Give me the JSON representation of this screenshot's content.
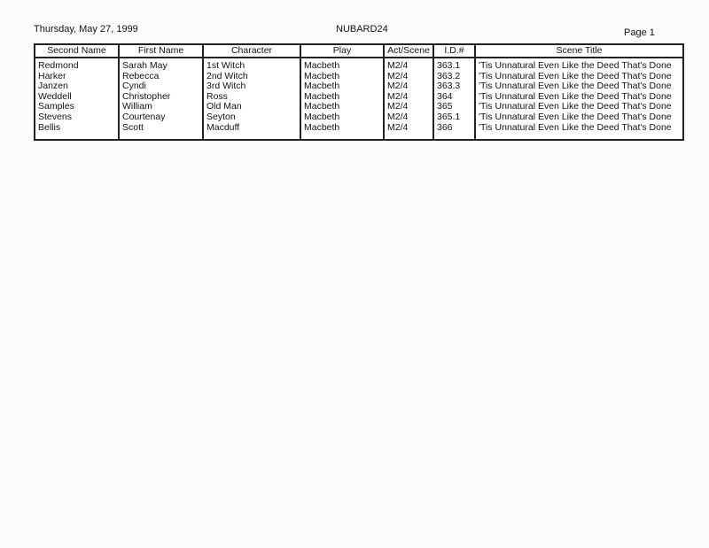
{
  "header": {
    "date": "Thursday, May 27, 1999",
    "report": "NUBARD24",
    "page": "Page 1"
  },
  "table": {
    "columns": [
      "Second Name",
      "First Name",
      "Character",
      "Play",
      "Act/Scene",
      "I.D.#",
      "Scene Title"
    ],
    "rows": [
      [
        "Redmond",
        "Sarah May",
        "1st Witch",
        "Macbeth",
        "M2/4",
        "363.1",
        "'Tis Unnatural Even Like the Deed That's Done"
      ],
      [
        "Harker",
        "Rebecca",
        "2nd Witch",
        "Macbeth",
        "M2/4",
        "363.2",
        "'Tis Unnatural Even Like the Deed That's Done"
      ],
      [
        "Janzen",
        "Cyndi",
        "3rd Witch",
        "Macbeth",
        "M2/4",
        "363.3",
        "'Tis Unnatural Even Like the Deed That's Done"
      ],
      [
        "Weddell",
        "Christopher",
        "Ross",
        "Macbeth",
        "M2/4",
        "364",
        "'Tis Unnatural Even Like the Deed That's Done"
      ],
      [
        "Samples",
        "William",
        "Old Man",
        "Macbeth",
        "M2/4",
        "365",
        "'Tis Unnatural Even Like the Deed That's Done"
      ],
      [
        "Stevens",
        "Courtenay",
        "Seyton",
        "Macbeth",
        "M2/4",
        "365.1",
        "'Tis Unnatural Even Like the Deed That's Done"
      ],
      [
        "Bellis",
        "Scott",
        "Macduff",
        "Macbeth",
        "M2/4",
        "366",
        "'Tis Unnatural Even Like the Deed That's Done"
      ]
    ]
  }
}
